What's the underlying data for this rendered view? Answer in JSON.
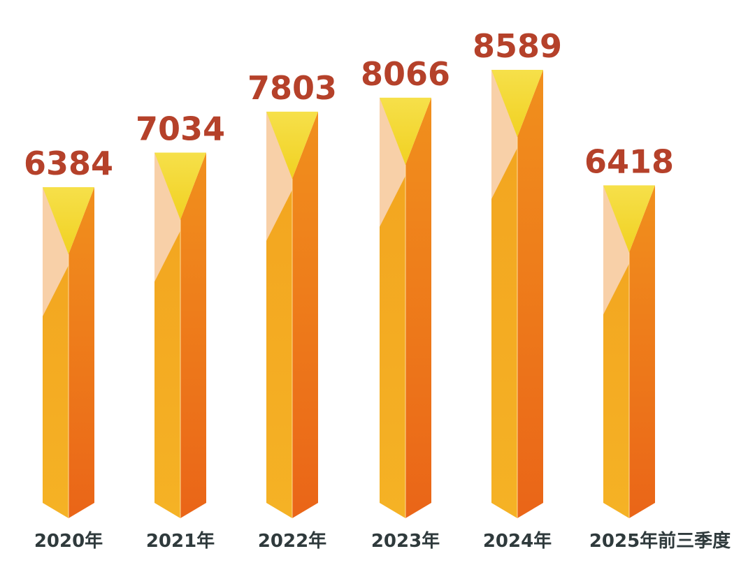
{
  "chart_data": {
    "type": "bar",
    "categories": [
      "2020年",
      "2021年",
      "2022年",
      "2023年",
      "2024年",
      "2025年前三季度"
    ],
    "values": [
      6384,
      7034,
      7803,
      8066,
      8589,
      6418
    ],
    "data_labels": [
      "6384",
      "7034",
      "7803",
      "8066",
      "8589",
      "6418"
    ],
    "title": "",
    "xlabel": "",
    "ylabel": "",
    "grid": false,
    "legend": "none"
  },
  "colors": {
    "value_label": "#b5412a",
    "category_label": "#2f3a3c",
    "front_top": "#f2a31f",
    "front_bottom": "#f5b225",
    "side_top": "#f1901d",
    "side_bottom": "#ea6518",
    "highlight": "#f8d0a8",
    "top_triangle": "#f1d122",
    "top_triangle_light": "#f6e04a",
    "edge": "#ffe8b0"
  }
}
